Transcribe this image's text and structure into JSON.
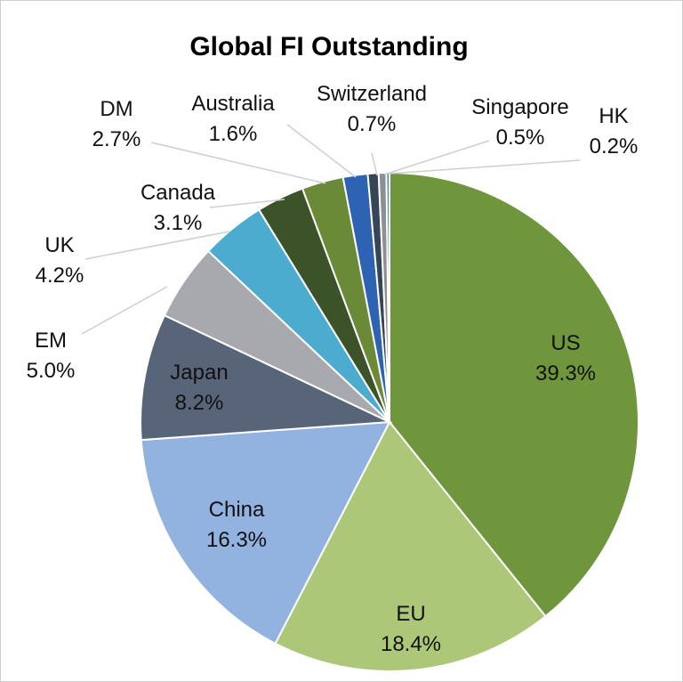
{
  "chart_data": {
    "type": "pie",
    "title": "Global FI Outstanding",
    "start_angle_deg": 0,
    "direction": "clockwise",
    "slices": [
      {
        "label": "US",
        "value": 39.3,
        "pct_label": "39.3%",
        "color": "#6f963c"
      },
      {
        "label": "EU",
        "value": 18.4,
        "pct_label": "18.4%",
        "color": "#adc779"
      },
      {
        "label": "China",
        "value": 16.3,
        "pct_label": "16.3%",
        "color": "#92b2df"
      },
      {
        "label": "Japan",
        "value": 8.2,
        "pct_label": "8.2%",
        "color": "#586579"
      },
      {
        "label": "EM",
        "value": 5.0,
        "pct_label": "5.0%",
        "color": "#a8a9ae"
      },
      {
        "label": "UK",
        "value": 4.2,
        "pct_label": "4.2%",
        "color": "#4bacd0"
      },
      {
        "label": "Canada",
        "value": 3.1,
        "pct_label": "3.1%",
        "color": "#3c5228"
      },
      {
        "label": "DM",
        "value": 2.7,
        "pct_label": "2.7%",
        "color": "#6b8a38"
      },
      {
        "label": "Australia",
        "value": 1.6,
        "pct_label": "1.6%",
        "color": "#2e63b3"
      },
      {
        "label": "Switzerland",
        "value": 0.7,
        "pct_label": "0.7%",
        "color": "#364657"
      },
      {
        "label": "Singapore",
        "value": 0.5,
        "pct_label": "0.5%",
        "color": "#8c8f93"
      },
      {
        "label": "HK",
        "value": 0.2,
        "pct_label": "0.2%",
        "color": "#2f8fb5"
      }
    ]
  }
}
